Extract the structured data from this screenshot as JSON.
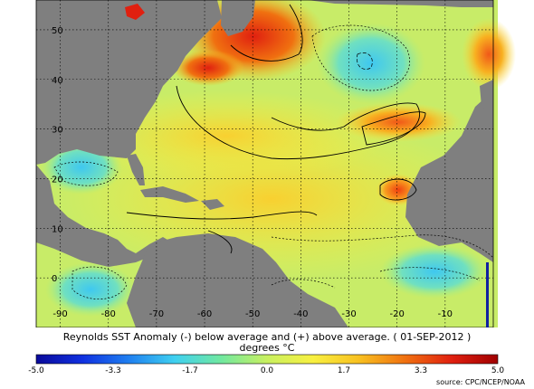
{
  "map": {
    "lon_ticks": [
      -90,
      -80,
      -70,
      -60,
      -50,
      -40,
      -30,
      -20,
      -10
    ],
    "lon_labels": [
      "-90",
      "-80",
      "-70",
      "-60",
      "-50",
      "-40",
      "-30",
      "-20",
      "-10"
    ],
    "lat_ticks": [
      0,
      10,
      20,
      30,
      40,
      50
    ],
    "lat_labels": [
      "0",
      "10",
      "20",
      "30",
      "40",
      "50"
    ],
    "lon_range": [
      -95,
      0
    ],
    "lat_range": [
      -10,
      56
    ],
    "land_color": "#7f7f7f",
    "grid": true
  },
  "title": "Reynolds SST Anomaly (-) below average and (+) above average. ( 01-SEP-2012 )",
  "subtitle": "degrees °C",
  "colorbar": {
    "labels": [
      "-5.0",
      "-3.3",
      "-1.7",
      "0.0",
      "1.7",
      "3.3",
      "5.0"
    ],
    "range": [
      -5.0,
      5.0
    ],
    "colors": [
      "#0a0a9a",
      "#1030e0",
      "#1f7ff0",
      "#3fd0f0",
      "#70e8a0",
      "#c8f060",
      "#f8f040",
      "#f8c020",
      "#f07010",
      "#e02010",
      "#a00000"
    ]
  },
  "source": "source:  CPC/NCEP/NOAA"
}
